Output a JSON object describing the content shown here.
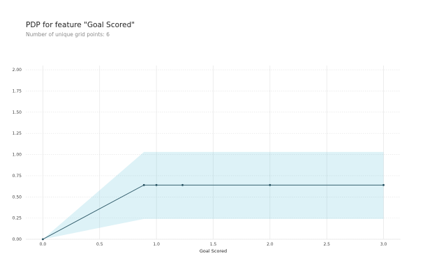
{
  "chart_data": {
    "type": "line",
    "title": "PDP for feature \"Goal Scored\"",
    "subtitle": "Number of unique grid points: 6",
    "xlabel": "Goal Scored",
    "ylabel": "",
    "xlim": [
      -0.15,
      3.15
    ],
    "ylim": [
      0,
      2.05
    ],
    "x_ticks": [
      {
        "value": 0.0,
        "label": "0.0"
      },
      {
        "value": 0.5,
        "label": "0.5"
      },
      {
        "value": 1.0,
        "label": "1.0"
      },
      {
        "value": 1.5,
        "label": "1.5"
      },
      {
        "value": 2.0,
        "label": "2.0"
      },
      {
        "value": 2.5,
        "label": "2.5"
      },
      {
        "value": 3.0,
        "label": "3.0"
      }
    ],
    "y_ticks": [
      {
        "value": 0.0,
        "label": "0.00"
      },
      {
        "value": 0.25,
        "label": "0.25"
      },
      {
        "value": 0.5,
        "label": "0.50"
      },
      {
        "value": 0.75,
        "label": "0.75"
      },
      {
        "value": 1.0,
        "label": "1.00"
      },
      {
        "value": 1.25,
        "label": "1.25"
      },
      {
        "value": 1.5,
        "label": "1.50"
      },
      {
        "value": 1.75,
        "label": "1.75"
      },
      {
        "value": 2.0,
        "label": "2.00"
      }
    ],
    "grid": true,
    "series": [
      {
        "x": [
          0.0,
          0.89,
          1.0,
          1.23,
          2.0,
          3.0
        ],
        "y": [
          0.0,
          0.64,
          0.64,
          0.64,
          0.64,
          0.64
        ],
        "upper": [
          0.0,
          1.03,
          1.03,
          1.03,
          1.03,
          1.03
        ],
        "lower": [
          0.0,
          0.24,
          0.24,
          0.24,
          0.24,
          0.24
        ]
      }
    ],
    "colors": {
      "line": "#1f4c5c",
      "marker": "#1f4c5c",
      "band": "#66c6db",
      "grid": "#e1e1e1",
      "axis_line": "#e6e6e6"
    }
  }
}
